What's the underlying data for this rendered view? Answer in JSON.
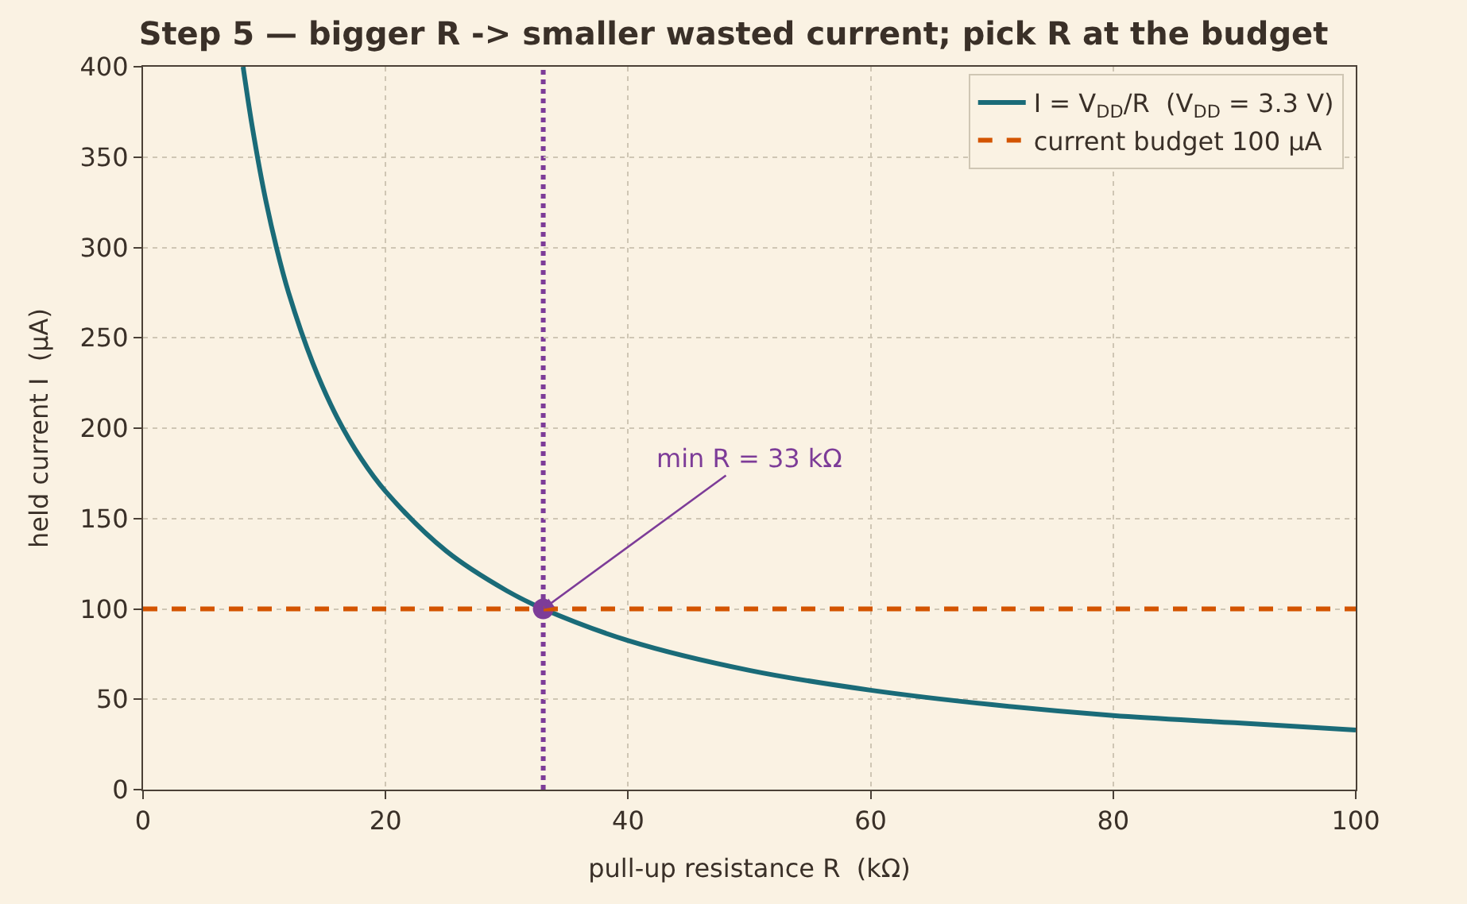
{
  "chart_data": {
    "type": "line",
    "title": "Step 5 — bigger R -> smaller wasted current; pick R at the budget",
    "xlabel": "pull-up resistance R  (kΩ)",
    "ylabel": "held current I  (µA)",
    "series": [
      {
        "name": "I = V$_{DD}$/R  (V$_{DD}$ = 3.3 V)",
        "color": "#1a6b78",
        "x": [
          8.25,
          9,
          10,
          11,
          12,
          14,
          16,
          18,
          20,
          25,
          30,
          33,
          40,
          50,
          60,
          70,
          80,
          90,
          100
        ],
        "values": [
          400,
          367,
          330,
          300,
          275,
          236,
          206,
          183,
          165,
          132,
          110,
          100,
          82.5,
          66,
          55,
          47,
          41,
          37,
          33
        ],
        "marker": "none"
      },
      {
        "type": "scatter",
        "color": "#7d3c98",
        "x": [
          33
        ],
        "values": [
          100
        ],
        "marker": "circle"
      }
    ],
    "ref_lines": [
      {
        "axis": "y",
        "value": 100,
        "label": "current budget 100 µA",
        "color": "#d35400",
        "line_style": "dashed"
      },
      {
        "axis": "x",
        "value": 33,
        "color": "#7d3c98",
        "line_style": "dotted"
      }
    ],
    "annotations": [
      {
        "text": "min R = 33 kΩ",
        "x": 33,
        "y": 100
      }
    ],
    "xlim": [
      0,
      100
    ],
    "xticks": [
      0,
      20,
      40,
      60,
      80,
      100
    ],
    "ylim": [
      0,
      400
    ],
    "yticks": [
      0,
      50,
      100,
      150,
      200,
      250,
      300,
      350,
      400
    ],
    "grid": true,
    "legend": "top right"
  }
}
